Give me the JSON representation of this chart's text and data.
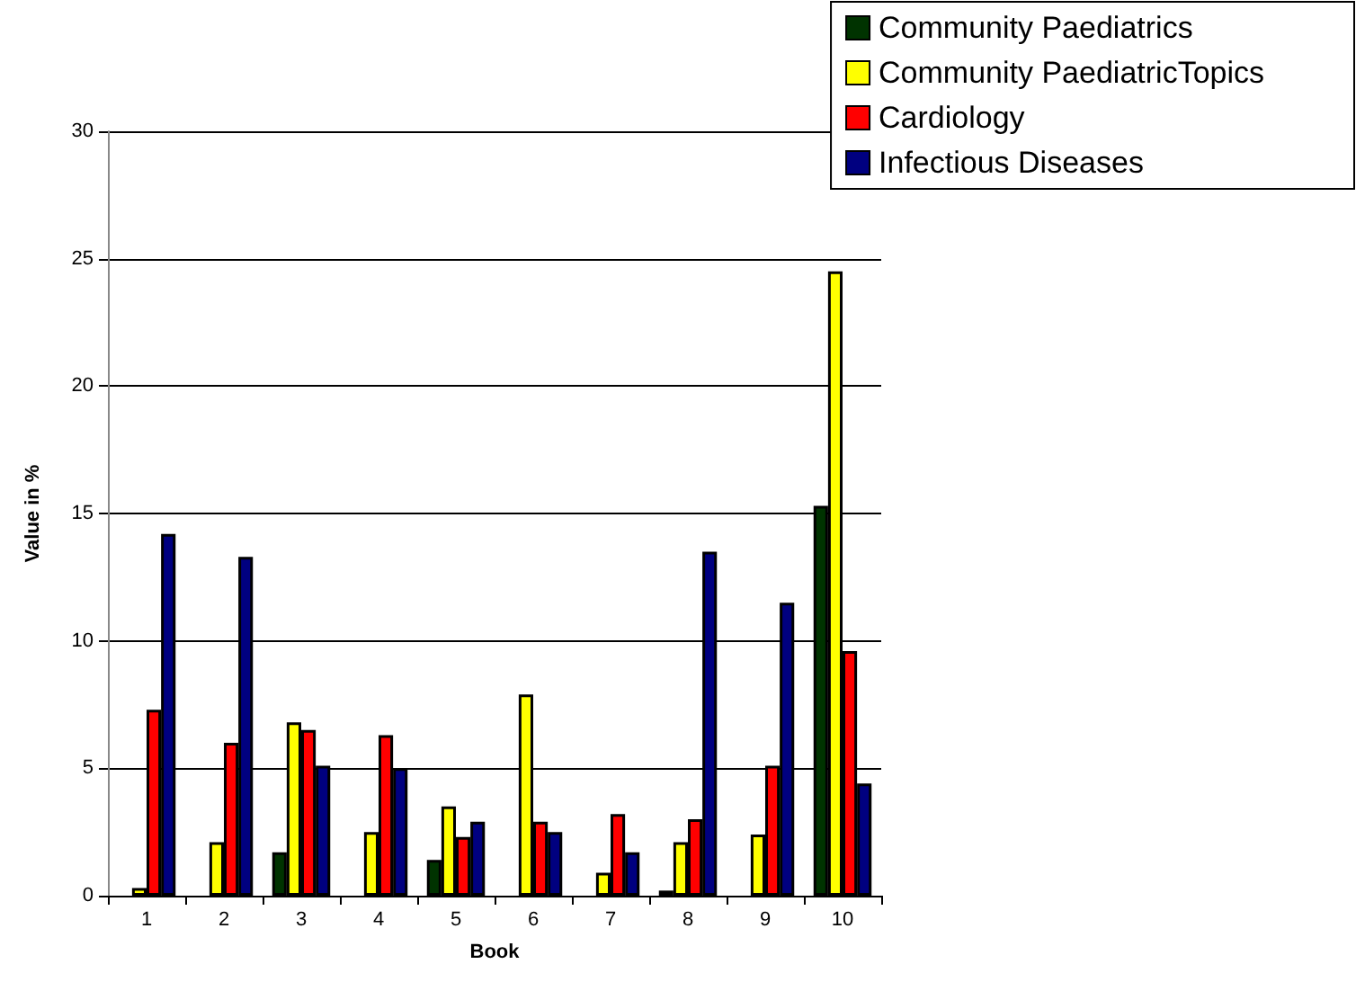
{
  "chart_data": {
    "type": "bar",
    "xlabel": "Book",
    "ylabel": "Value in %",
    "categories": [
      "1",
      "2",
      "3",
      "4",
      "5",
      "6",
      "7",
      "8",
      "9",
      "10"
    ],
    "series": [
      {
        "name": "Community Paediatrics",
        "color": "#003300",
        "values": [
          0,
          0,
          1.7,
          0,
          1.4,
          0,
          0,
          0.2,
          0,
          15.3
        ]
      },
      {
        "name": "Community PaediatricTopics",
        "color": "#ffff00",
        "values": [
          0.3,
          2.1,
          6.8,
          2.5,
          3.5,
          7.9,
          0.9,
          2.1,
          2.4,
          24.5
        ]
      },
      {
        "name": "Cardiology",
        "color": "#ff0000",
        "values": [
          7.3,
          6.0,
          6.5,
          6.3,
          2.3,
          2.9,
          3.2,
          3.0,
          5.1,
          9.6
        ]
      },
      {
        "name": "Infectious Diseases",
        "color": "#000080",
        "values": [
          14.2,
          13.3,
          5.1,
          5.0,
          2.9,
          2.5,
          1.7,
          13.5,
          11.5,
          4.4
        ]
      }
    ],
    "ylim": [
      0,
      30
    ],
    "yticks": [
      0,
      5,
      10,
      15,
      20,
      25,
      30
    ],
    "grid": "y",
    "legend": "top right"
  }
}
